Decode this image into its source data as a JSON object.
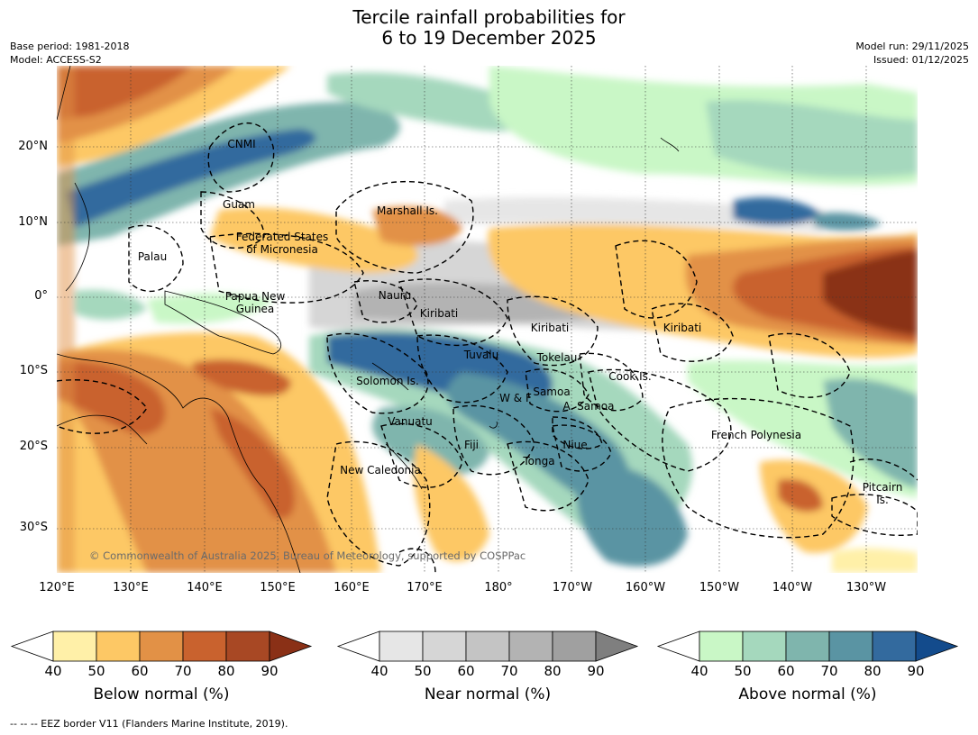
{
  "title": {
    "line1": "Tercile rainfall probabilities for",
    "line2": "6 to 19 December 2025"
  },
  "meta": {
    "base_period": "Base period: 1981-2018",
    "model": "Model: ACCESS-S2",
    "model_run": "Model run: 29/11/2025",
    "issued": "Issued: 01/12/2025"
  },
  "axes": {
    "lat_labels": [
      "20°N",
      "10°N",
      "0°",
      "10°S",
      "20°S",
      "30°S"
    ],
    "lon_labels": [
      "120°E",
      "130°E",
      "140°E",
      "150°E",
      "160°E",
      "170°E",
      "180°",
      "170°W",
      "160°W",
      "150°W",
      "140°W",
      "130°W"
    ]
  },
  "places": [
    {
      "name": "CNMI"
    },
    {
      "name": "Guam"
    },
    {
      "name": "Marshall Is."
    },
    {
      "name": "Federated States\nof Micronesia"
    },
    {
      "name": "Palau"
    },
    {
      "name": "Papua New\nGuinea"
    },
    {
      "name": "Nauru"
    },
    {
      "name": "Kiribati"
    },
    {
      "name": "Kiribati"
    },
    {
      "name": "Kiribati"
    },
    {
      "name": "Tuvalu"
    },
    {
      "name": "Tokelau"
    },
    {
      "name": "Cook Is."
    },
    {
      "name": "Solomon Is."
    },
    {
      "name": "Samoa"
    },
    {
      "name": "W & F"
    },
    {
      "name": "A. Samoa"
    },
    {
      "name": "Vanuatu"
    },
    {
      "name": "Fiji"
    },
    {
      "name": "Niue"
    },
    {
      "name": "Tonga"
    },
    {
      "name": "French Polynesia"
    },
    {
      "name": "New Caledonia"
    },
    {
      "name": "Pitcairn\nIs."
    }
  ],
  "copyright": "© Commonwealth of Australia 2025, Bureau of Meteorology, supported by COSPPac",
  "colorbars": [
    {
      "label": "Below normal (%)",
      "ticks": [
        "40",
        "50",
        "60",
        "70",
        "80",
        "90"
      ],
      "colors": [
        "#ffffff",
        "#fff0a8",
        "#fdc865",
        "#e29146",
        "#c9622e",
        "#a84824",
        "#8a3016"
      ]
    },
    {
      "label": "Near normal (%)",
      "ticks": [
        "40",
        "50",
        "60",
        "70",
        "80",
        "90"
      ],
      "colors": [
        "#ffffff",
        "#e6e6e6",
        "#d6d6d6",
        "#c4c4c4",
        "#b3b3b3",
        "#a0a0a0",
        "#7f7f7f"
      ]
    },
    {
      "label": "Above normal (%)",
      "ticks": [
        "40",
        "50",
        "60",
        "70",
        "80",
        "90"
      ],
      "colors": [
        "#ffffff",
        "#c9f7c6",
        "#a5d8bd",
        "#7fb5ad",
        "#5a94a3",
        "#336a9e",
        "#134b8c"
      ]
    }
  ],
  "footer": "-- -- -- EEZ border V11 (Flanders Marine Institute, 2019)."
}
